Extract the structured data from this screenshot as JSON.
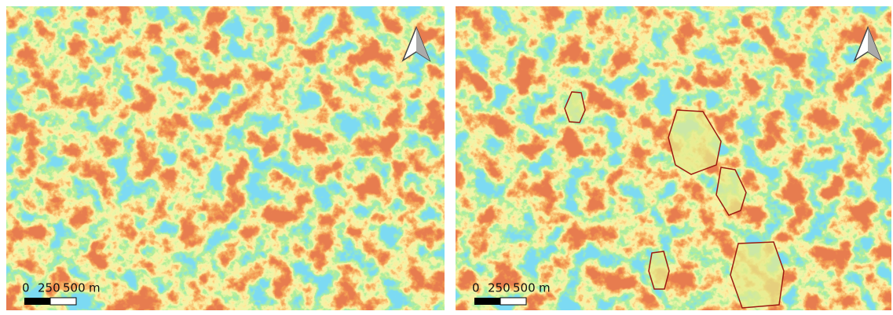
{
  "panels": [
    {
      "scale_bar": {
        "labels": [
          "0",
          "250",
          "500"
        ],
        "unit": "m"
      }
    },
    {
      "scale_bar": {
        "labels": [
          "0",
          "250",
          "500"
        ],
        "unit": "m"
      }
    }
  ]
}
